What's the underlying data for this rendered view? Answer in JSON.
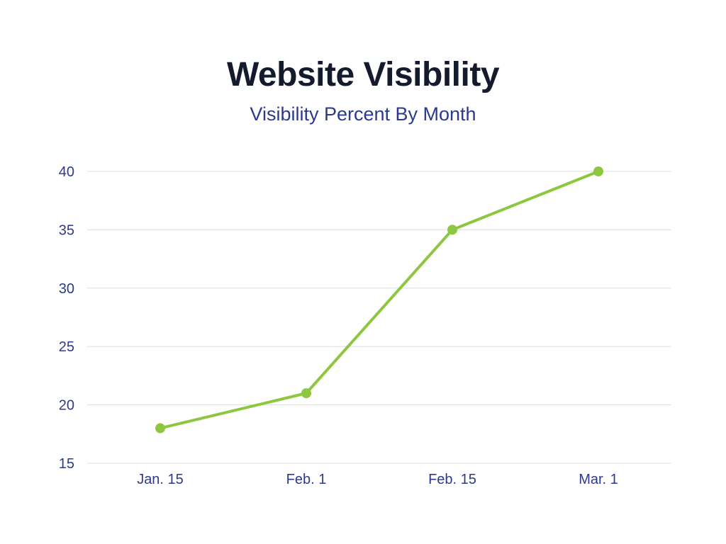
{
  "chart_data": {
    "type": "line",
    "title": "Website Visibility",
    "subtitle": "Visibility Percent By Month",
    "xlabel": "",
    "ylabel": "",
    "categories": [
      "Jan. 15",
      "Feb. 1",
      "Feb. 15",
      "Mar. 1"
    ],
    "series": [
      {
        "values": [
          18,
          21,
          35,
          40
        ]
      }
    ],
    "ylim": [
      15,
      40
    ],
    "yticks": [
      15,
      20,
      25,
      30,
      35,
      40
    ],
    "grid": true,
    "legend": "none",
    "colors": {
      "line": "#8dc63f",
      "grid": "#dcdee6",
      "tick_text": "#2b3a8c",
      "title": "#141b2d",
      "subtitle": "#2b3a8c"
    }
  }
}
